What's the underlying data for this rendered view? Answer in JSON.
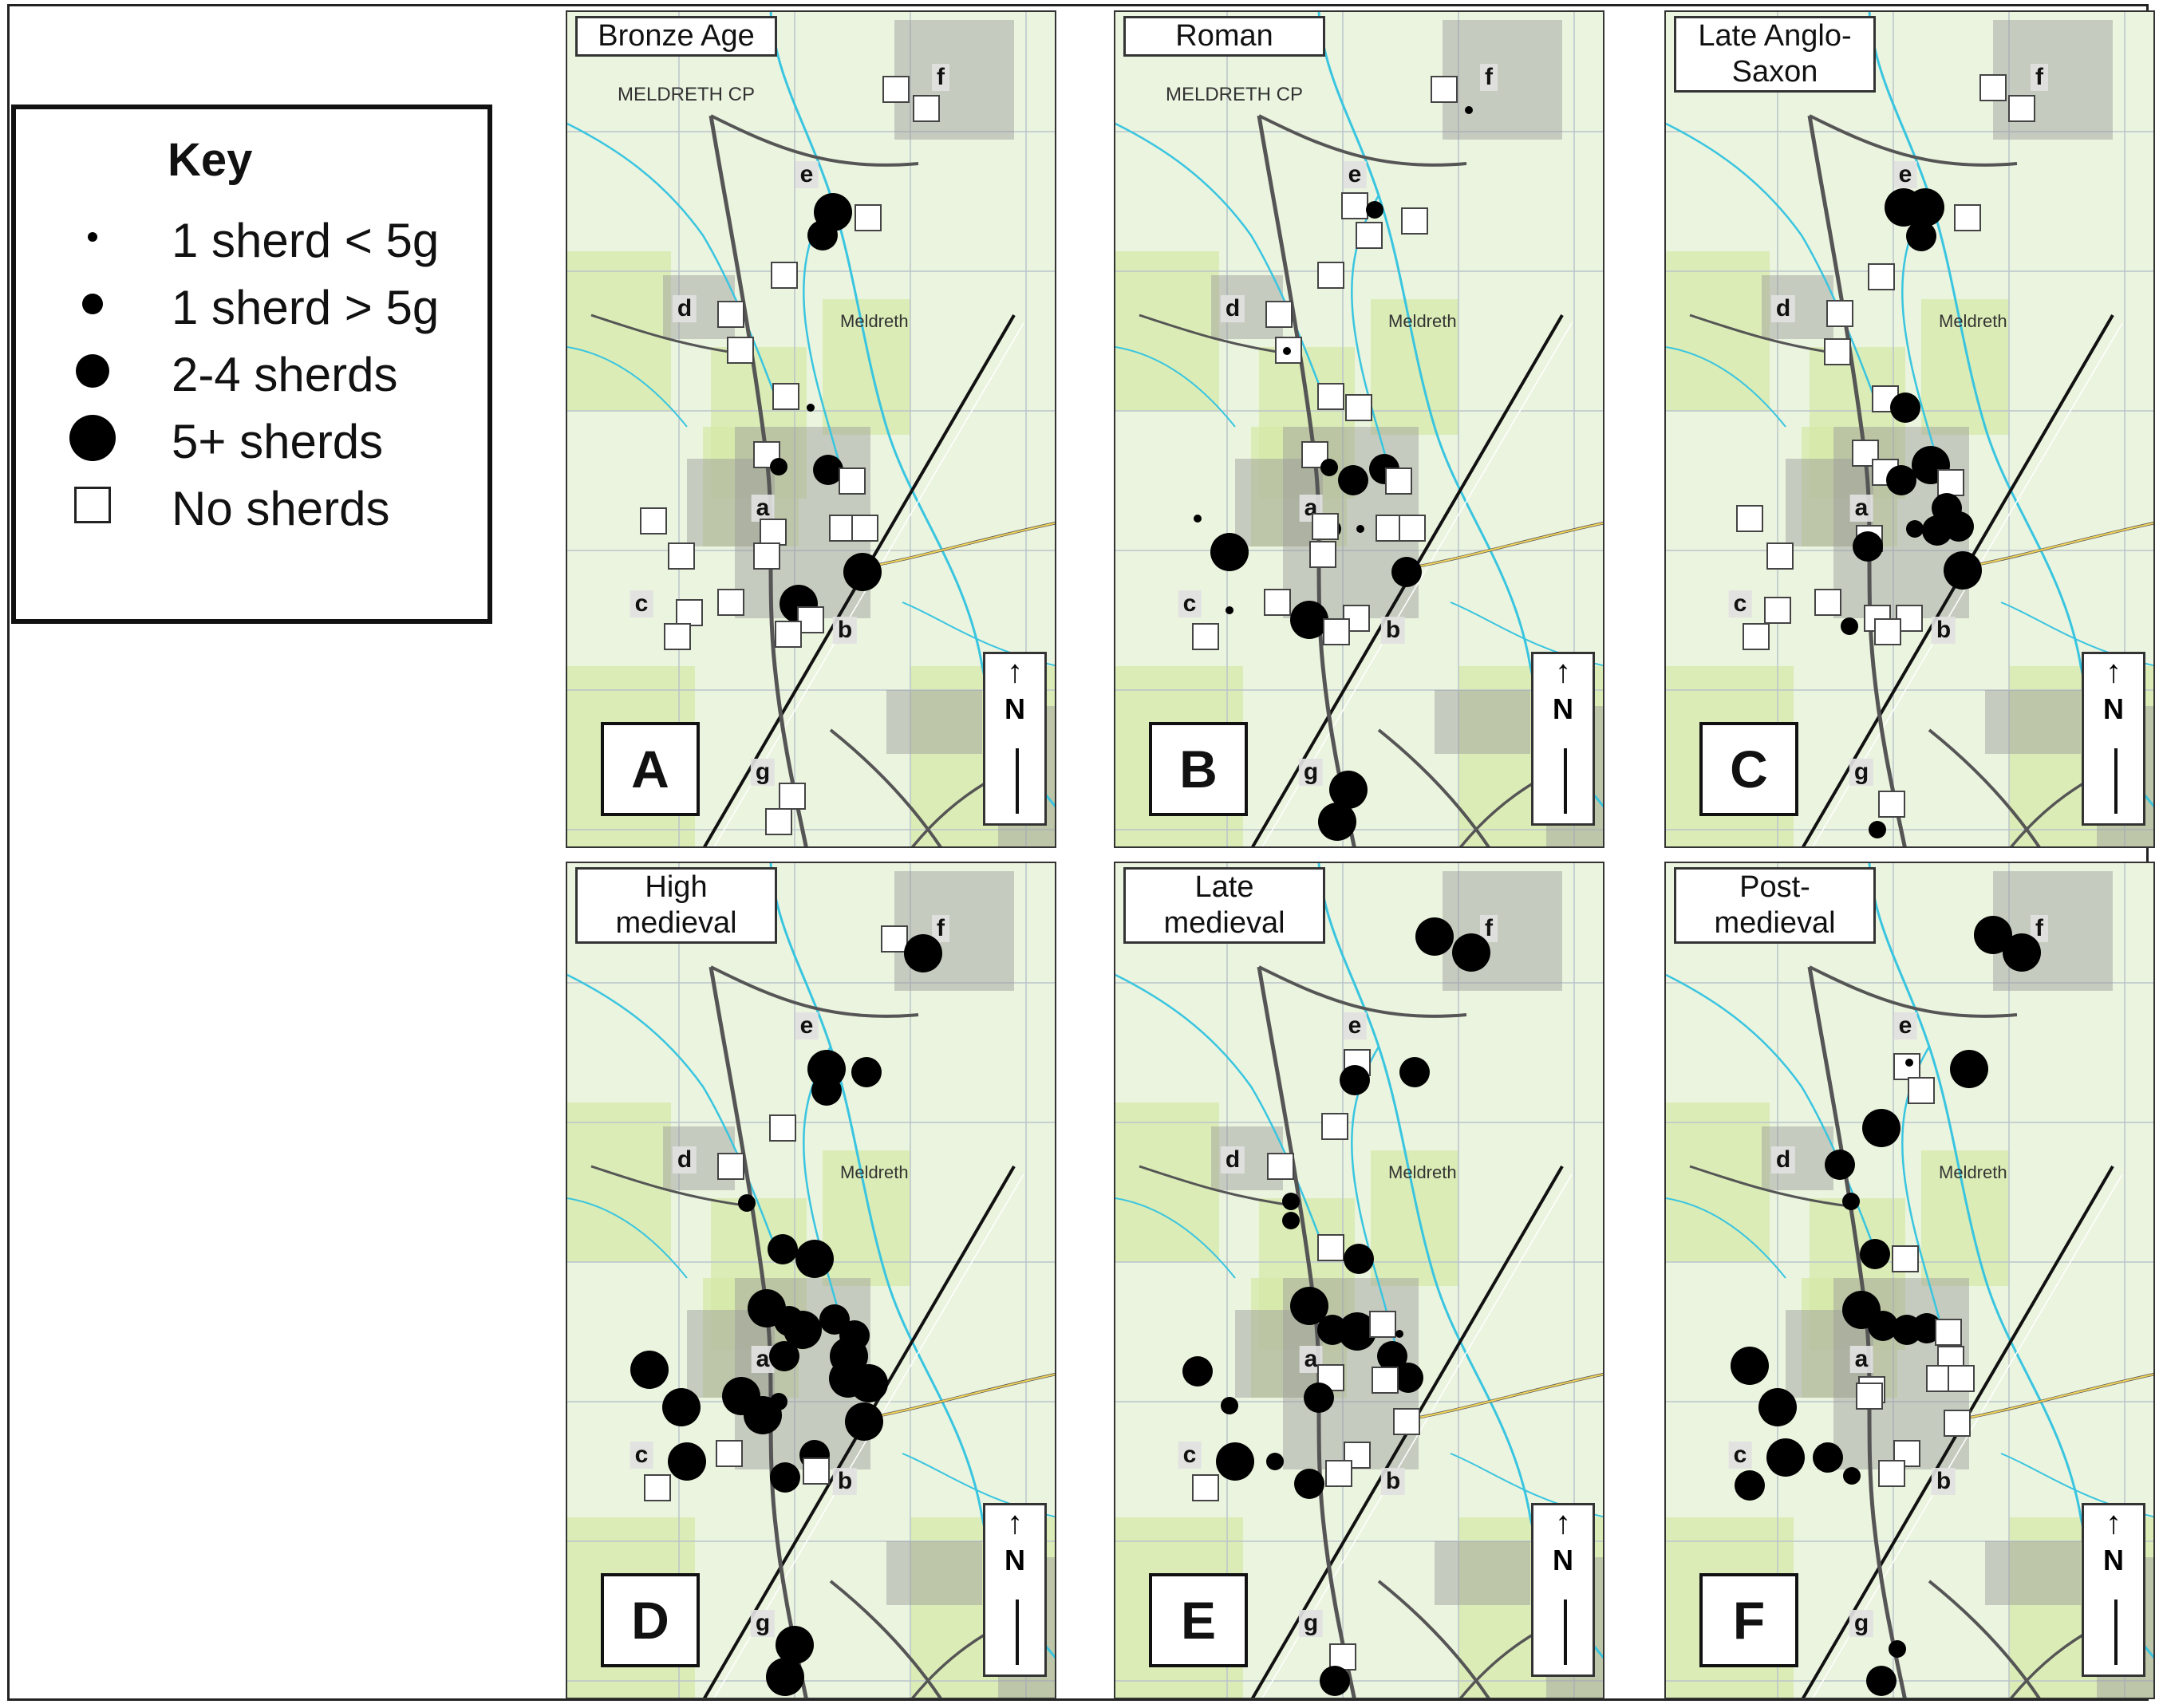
{
  "key": {
    "title": "Key",
    "items": [
      {
        "label": "1 sherd < 5g",
        "symbol": "dot-small-icon"
      },
      {
        "label": "1 sherd > 5g",
        "symbol": "dot-medium-icon"
      },
      {
        "label": "2-4 sherds",
        "symbol": "dot-large-icon"
      },
      {
        "label": "5+ sherds",
        "symbol": "dot-xlarge-icon"
      },
      {
        "label": "No sherds",
        "symbol": "open-square-icon"
      }
    ]
  },
  "colors": {
    "map_background": "#ebf4df",
    "water": "#39c5e0",
    "field_green": "#d5e9a8",
    "built_area": "#9a9a9a",
    "railway": "#111111",
    "road_yellow": "#f3d45a",
    "marker": "#000000"
  },
  "map_text": {
    "parish": "MELDRETH CP",
    "village": "Meldreth",
    "north": "N",
    "north_arrow": "↑",
    "sites": [
      "a",
      "b",
      "c",
      "d",
      "e",
      "f",
      "g"
    ]
  },
  "panels": [
    {
      "letter": "A",
      "title": "Bronze Age",
      "show_parish": true
    },
    {
      "letter": "B",
      "title": "Roman",
      "show_parish": true
    },
    {
      "letter": "C",
      "title": "Late Anglo-Saxon",
      "show_parish": false
    },
    {
      "letter": "D",
      "title": "High medieval",
      "show_parish": false
    },
    {
      "letter": "E",
      "title": "Late medieval",
      "show_parish": false
    },
    {
      "letter": "F",
      "title": "Post-medieval",
      "show_parish": false
    }
  ]
}
